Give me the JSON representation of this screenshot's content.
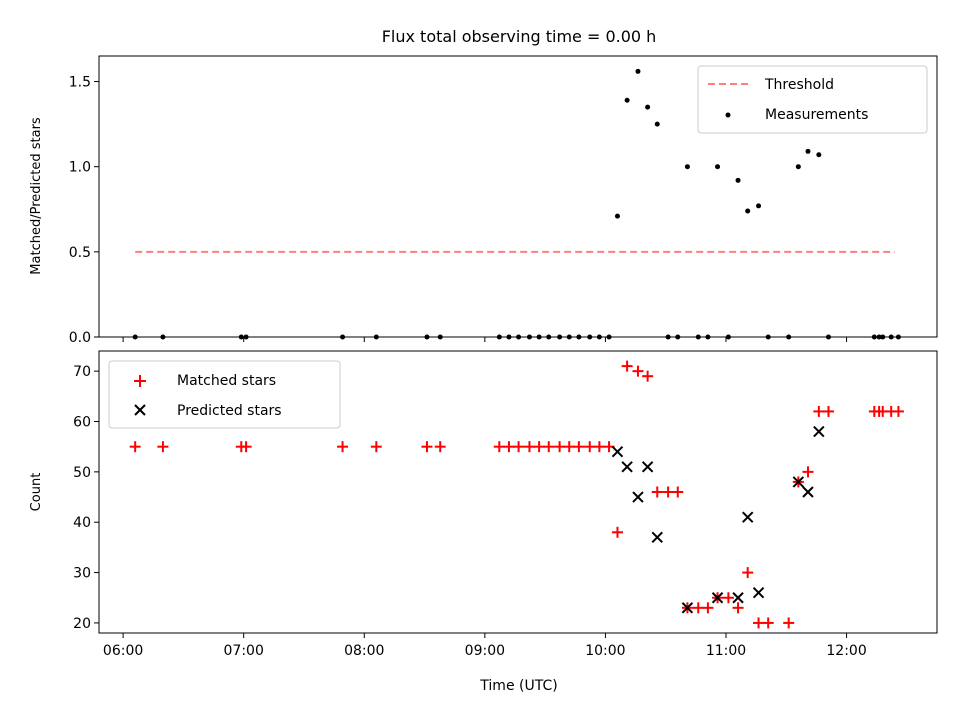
{
  "chart_data": [
    {
      "type": "scatter",
      "title": "Flux total observing time = 0.00 h",
      "xlabel": "",
      "ylabel": "Matched/Predicted stars",
      "xlim": [
        5.8,
        12.75
      ],
      "ylim": [
        0,
        1.65
      ],
      "yticks": [
        0.0,
        0.5,
        1.0,
        1.5
      ],
      "ytick_labels": [
        "0.0",
        "0.5",
        "1.0",
        "1.5"
      ],
      "xticks": [
        6,
        7,
        8,
        9,
        10,
        11,
        12
      ],
      "legend": {
        "location": "top-right",
        "entries": [
          "Threshold",
          "Measurements"
        ]
      },
      "threshold": {
        "name": "Threshold",
        "x_start": 6.1,
        "x_end": 12.4,
        "value": 0.5,
        "color": "#ff7f7f"
      },
      "series": [
        {
          "name": "Measurements",
          "marker": "dot",
          "color": "#000000",
          "points": [
            [
              6.1,
              0
            ],
            [
              6.33,
              0
            ],
            [
              6.98,
              0
            ],
            [
              7.02,
              0
            ],
            [
              7.82,
              0
            ],
            [
              8.1,
              0
            ],
            [
              8.52,
              0
            ],
            [
              8.63,
              0
            ],
            [
              9.12,
              0
            ],
            [
              9.2,
              0
            ],
            [
              9.28,
              0
            ],
            [
              9.37,
              0
            ],
            [
              9.45,
              0
            ],
            [
              9.53,
              0
            ],
            [
              9.62,
              0
            ],
            [
              9.7,
              0
            ],
            [
              9.78,
              0
            ],
            [
              9.87,
              0
            ],
            [
              9.95,
              0
            ],
            [
              10.03,
              0
            ],
            [
              10.1,
              0.71
            ],
            [
              10.18,
              1.39
            ],
            [
              10.27,
              1.56
            ],
            [
              10.35,
              1.35
            ],
            [
              10.43,
              1.25
            ],
            [
              10.52,
              0
            ],
            [
              10.6,
              0
            ],
            [
              10.68,
              1.0
            ],
            [
              10.77,
              0
            ],
            [
              10.85,
              0
            ],
            [
              10.93,
              1.0
            ],
            [
              11.02,
              0
            ],
            [
              11.1,
              0.92
            ],
            [
              11.18,
              0.74
            ],
            [
              11.27,
              0.77
            ],
            [
              11.35,
              0
            ],
            [
              11.52,
              0
            ],
            [
              11.6,
              1.0
            ],
            [
              11.68,
              1.09
            ],
            [
              11.77,
              1.07
            ],
            [
              11.85,
              0
            ],
            [
              12.23,
              0
            ],
            [
              12.27,
              0
            ],
            [
              12.3,
              0
            ],
            [
              12.37,
              0
            ],
            [
              12.43,
              0
            ]
          ]
        }
      ]
    },
    {
      "type": "scatter",
      "title": "",
      "xlabel": "Time (UTC)",
      "ylabel": "Count",
      "xlim": [
        5.8,
        12.75
      ],
      "ylim": [
        18,
        74
      ],
      "yticks": [
        20,
        30,
        40,
        50,
        60,
        70
      ],
      "ytick_labels": [
        "20",
        "30",
        "40",
        "50",
        "60",
        "70"
      ],
      "xticks": [
        6,
        7,
        8,
        9,
        10,
        11,
        12
      ],
      "xtick_labels": [
        "06:00",
        "07:00",
        "08:00",
        "09:00",
        "10:00",
        "11:00",
        "12:00"
      ],
      "legend": {
        "location": "top-left",
        "entries": [
          "Matched stars",
          "Predicted stars"
        ]
      },
      "series": [
        {
          "name": "Matched stars",
          "marker": "plus",
          "color": "#ff0000",
          "points": [
            [
              6.1,
              55
            ],
            [
              6.33,
              55
            ],
            [
              6.98,
              55
            ],
            [
              7.02,
              55
            ],
            [
              7.82,
              55
            ],
            [
              8.1,
              55
            ],
            [
              8.52,
              55
            ],
            [
              8.63,
              55
            ],
            [
              9.12,
              55
            ],
            [
              9.2,
              55
            ],
            [
              9.28,
              55
            ],
            [
              9.37,
              55
            ],
            [
              9.45,
              55
            ],
            [
              9.53,
              55
            ],
            [
              9.62,
              55
            ],
            [
              9.7,
              55
            ],
            [
              9.78,
              55
            ],
            [
              9.87,
              55
            ],
            [
              9.95,
              55
            ],
            [
              10.03,
              55
            ],
            [
              10.1,
              38
            ],
            [
              10.18,
              71
            ],
            [
              10.27,
              70
            ],
            [
              10.35,
              69
            ],
            [
              10.43,
              46
            ],
            [
              10.52,
              46
            ],
            [
              10.6,
              46
            ],
            [
              10.68,
              23
            ],
            [
              10.77,
              23
            ],
            [
              10.85,
              23
            ],
            [
              10.93,
              25
            ],
            [
              11.02,
              25
            ],
            [
              11.1,
              23
            ],
            [
              11.18,
              30
            ],
            [
              11.27,
              20
            ],
            [
              11.35,
              20
            ],
            [
              11.52,
              20
            ],
            [
              11.6,
              48
            ],
            [
              11.68,
              50
            ],
            [
              11.77,
              62
            ],
            [
              11.85,
              62
            ],
            [
              12.23,
              62
            ],
            [
              12.27,
              62
            ],
            [
              12.3,
              62
            ],
            [
              12.37,
              62
            ],
            [
              12.43,
              62
            ]
          ]
        },
        {
          "name": "Predicted stars",
          "marker": "x",
          "color": "#000000",
          "points": [
            [
              10.1,
              54
            ],
            [
              10.18,
              51
            ],
            [
              10.27,
              45
            ],
            [
              10.35,
              51
            ],
            [
              10.43,
              37
            ],
            [
              10.68,
              23
            ],
            [
              10.93,
              25
            ],
            [
              11.1,
              25
            ],
            [
              11.18,
              41
            ],
            [
              11.27,
              26
            ],
            [
              11.6,
              48
            ],
            [
              11.68,
              46
            ],
            [
              11.77,
              58
            ]
          ]
        }
      ]
    }
  ]
}
